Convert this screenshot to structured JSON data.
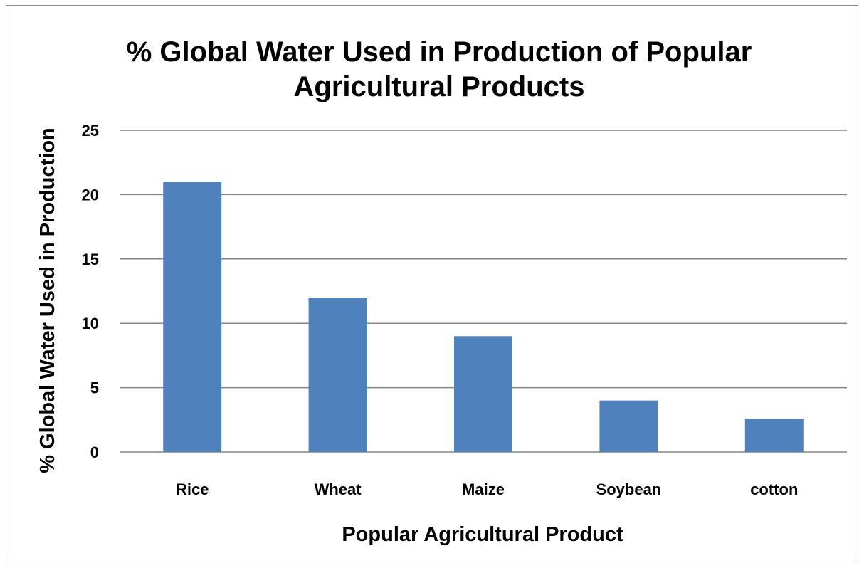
{
  "chart_data": {
    "type": "bar",
    "title_lines": [
      "% Global Water Used in Production of Popular",
      "Agricultural Products"
    ],
    "xlabel": "Popular Agricultural Product",
    "ylabel": "% Global Water Used in Production",
    "categories": [
      "Rice",
      "Wheat",
      "Maize",
      "Soybean",
      "cotton"
    ],
    "values": [
      21,
      12,
      9,
      4,
      2.6
    ],
    "ylim": [
      0,
      25
    ],
    "yticks": [
      "0",
      "5",
      "10",
      "15",
      "20",
      "25"
    ],
    "grid": true,
    "legend": "none",
    "bar_color": "#4F81BD",
    "gridline_color": "#868686"
  }
}
